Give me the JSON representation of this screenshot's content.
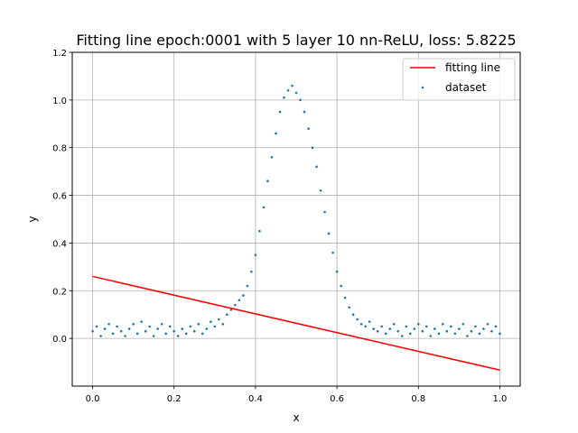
{
  "chart_data": {
    "type": "scatter",
    "title": "Fitting line epoch:0001 with 5 layer 10 nn-ReLU, loss: 5.8225",
    "xlabel": "x",
    "ylabel": "y",
    "xlim": [
      -0.05,
      1.05
    ],
    "ylim": [
      -0.2,
      1.2
    ],
    "xticks": [
      "0.0",
      "0.2",
      "0.4",
      "0.6",
      "0.8",
      "1.0"
    ],
    "xtick_values": [
      0.0,
      0.2,
      0.4,
      0.6,
      0.8,
      1.0
    ],
    "yticks": [
      "0.0",
      "0.2",
      "0.4",
      "0.6",
      "0.8",
      "1.0",
      "1.2"
    ],
    "ytick_values": [
      0.0,
      0.2,
      0.4,
      0.6,
      0.8,
      1.0,
      1.2
    ],
    "grid": true,
    "legend_position": "top-right",
    "series": [
      {
        "name": "fitting line",
        "kind": "line",
        "color": "#ff0000",
        "x": [
          0.0,
          1.0
        ],
        "y": [
          0.26,
          -0.133
        ]
      },
      {
        "name": "dataset",
        "kind": "scatter",
        "color": "#1f77b4",
        "x": [
          0.0,
          0.01,
          0.02,
          0.03,
          0.04,
          0.05,
          0.06,
          0.07,
          0.08,
          0.09,
          0.1,
          0.11,
          0.12,
          0.13,
          0.14,
          0.15,
          0.16,
          0.17,
          0.18,
          0.19,
          0.2,
          0.21,
          0.22,
          0.23,
          0.24,
          0.25,
          0.26,
          0.27,
          0.28,
          0.29,
          0.3,
          0.31,
          0.32,
          0.33,
          0.34,
          0.35,
          0.36,
          0.37,
          0.38,
          0.39,
          0.4,
          0.41,
          0.42,
          0.43,
          0.44,
          0.45,
          0.46,
          0.47,
          0.48,
          0.49,
          0.5,
          0.51,
          0.52,
          0.53,
          0.54,
          0.55,
          0.56,
          0.57,
          0.58,
          0.59,
          0.6,
          0.61,
          0.62,
          0.63,
          0.64,
          0.65,
          0.66,
          0.67,
          0.68,
          0.69,
          0.7,
          0.71,
          0.72,
          0.73,
          0.74,
          0.75,
          0.76,
          0.77,
          0.78,
          0.79,
          0.8,
          0.81,
          0.82,
          0.83,
          0.84,
          0.85,
          0.86,
          0.87,
          0.88,
          0.89,
          0.9,
          0.91,
          0.92,
          0.93,
          0.94,
          0.95,
          0.96,
          0.97,
          0.98,
          0.99,
          1.0
        ],
        "y": [
          0.03,
          0.05,
          0.01,
          0.04,
          0.06,
          0.02,
          0.05,
          0.03,
          0.01,
          0.04,
          0.06,
          0.02,
          0.07,
          0.03,
          0.05,
          0.01,
          0.04,
          0.06,
          0.02,
          0.05,
          0.03,
          0.01,
          0.04,
          0.02,
          0.05,
          0.03,
          0.06,
          0.02,
          0.04,
          0.07,
          0.05,
          0.08,
          0.06,
          0.1,
          0.12,
          0.14,
          0.16,
          0.18,
          0.22,
          0.28,
          0.35,
          0.45,
          0.55,
          0.66,
          0.76,
          0.86,
          0.95,
          1.01,
          1.04,
          1.06,
          1.03,
          1.0,
          0.95,
          0.88,
          0.8,
          0.72,
          0.62,
          0.53,
          0.44,
          0.36,
          0.28,
          0.22,
          0.17,
          0.13,
          0.1,
          0.08,
          0.06,
          0.05,
          0.07,
          0.04,
          0.03,
          0.05,
          0.02,
          0.04,
          0.06,
          0.03,
          0.01,
          0.05,
          0.02,
          0.04,
          0.06,
          0.03,
          0.05,
          0.01,
          0.04,
          0.02,
          0.06,
          0.03,
          0.05,
          0.02,
          0.04,
          0.06,
          0.01,
          0.03,
          0.05,
          0.02,
          0.04,
          0.06,
          0.03,
          0.05,
          0.02
        ]
      }
    ]
  }
}
